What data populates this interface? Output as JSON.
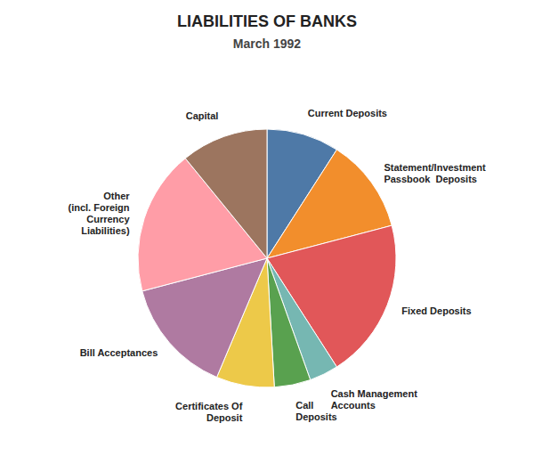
{
  "chart_data": {
    "type": "pie",
    "title": "LIABILITIES OF BANKS",
    "subtitle": "March 1992",
    "categories": [
      "Current Deposits",
      "Statement/Investment\nPassbook  Deposits",
      "Fixed Deposits",
      "Cash Management\nAccounts",
      "Call\nDeposits",
      "Certificates Of\nDeposit",
      "Bill Acceptances",
      "Other\n(incl. Foreign\nCurrency\nLiabilities)",
      "Capital"
    ],
    "values": [
      10,
      13,
      22,
      4,
      5,
      8,
      16,
      20,
      12
    ]
  }
}
